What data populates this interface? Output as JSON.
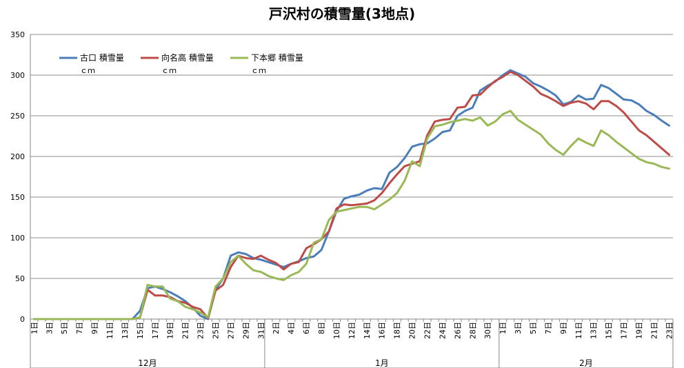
{
  "chart_data": {
    "type": "line",
    "title": "戸沢村の積雪量(3地点)",
    "ylim": [
      0,
      350
    ],
    "y_ticks": [
      "0",
      "50",
      "100",
      "150",
      "200",
      "250",
      "300",
      "350"
    ],
    "grid": "horizontal",
    "legend_position": "top-left",
    "x": [
      "12月1日",
      "12月2日",
      "12月3日",
      "12月4日",
      "12月5日",
      "12月6日",
      "12月7日",
      "12月8日",
      "12月9日",
      "12月10日",
      "12月11日",
      "12月12日",
      "12月13日",
      "12月14日",
      "12月15日",
      "12月16日",
      "12月17日",
      "12月18日",
      "12月19日",
      "12月20日",
      "12月21日",
      "12月22日",
      "12月23日",
      "12月24日",
      "12月25日",
      "12月26日",
      "12月27日",
      "12月28日",
      "12月29日",
      "12月30日",
      "12月31日",
      "1月1日",
      "1月2日",
      "1月3日",
      "1月4日",
      "1月5日",
      "1月6日",
      "1月7日",
      "1月8日",
      "1月9日",
      "1月10日",
      "1月11日",
      "1月12日",
      "1月13日",
      "1月14日",
      "1月15日",
      "1月16日",
      "1月17日",
      "1月18日",
      "1月19日",
      "1月20日",
      "1月21日",
      "1月22日",
      "1月23日",
      "1月24日",
      "1月25日",
      "1月26日",
      "1月27日",
      "1月28日",
      "1月29日",
      "1月30日",
      "1月31日",
      "2月1日",
      "2月2日",
      "2月3日",
      "2月4日",
      "2月5日",
      "2月6日",
      "2月7日",
      "2月8日",
      "2月9日",
      "2月10日",
      "2月11日",
      "2月12日",
      "2月13日",
      "2月14日",
      "2月15日",
      "2月16日",
      "2月17日",
      "2月18日",
      "2月19日",
      "2月20日",
      "2月21日",
      "2月22日",
      "2月23日"
    ],
    "x_tick_labels": [
      {
        "i": 0,
        "label": "1日"
      },
      {
        "i": 2,
        "label": "3日"
      },
      {
        "i": 4,
        "label": "5日"
      },
      {
        "i": 6,
        "label": "7日"
      },
      {
        "i": 8,
        "label": "9日"
      },
      {
        "i": 10,
        "label": "11日"
      },
      {
        "i": 12,
        "label": "13日"
      },
      {
        "i": 14,
        "label": "15日"
      },
      {
        "i": 16,
        "label": "17日"
      },
      {
        "i": 18,
        "label": "19日"
      },
      {
        "i": 20,
        "label": "21日"
      },
      {
        "i": 22,
        "label": "23日"
      },
      {
        "i": 24,
        "label": "25日"
      },
      {
        "i": 26,
        "label": "27日"
      },
      {
        "i": 28,
        "label": "29日"
      },
      {
        "i": 30,
        "label": "31日"
      },
      {
        "i": 32,
        "label": "2日"
      },
      {
        "i": 34,
        "label": "4日"
      },
      {
        "i": 36,
        "label": "6日"
      },
      {
        "i": 38,
        "label": "8日"
      },
      {
        "i": 40,
        "label": "10日"
      },
      {
        "i": 42,
        "label": "12日"
      },
      {
        "i": 44,
        "label": "14日"
      },
      {
        "i": 46,
        "label": "16日"
      },
      {
        "i": 48,
        "label": "18日"
      },
      {
        "i": 50,
        "label": "20日"
      },
      {
        "i": 52,
        "label": "22日"
      },
      {
        "i": 54,
        "label": "24日"
      },
      {
        "i": 56,
        "label": "26日"
      },
      {
        "i": 58,
        "label": "28日"
      },
      {
        "i": 60,
        "label": "30日"
      },
      {
        "i": 62,
        "label": "1日"
      },
      {
        "i": 64,
        "label": "3日"
      },
      {
        "i": 66,
        "label": "5日"
      },
      {
        "i": 68,
        "label": "7日"
      },
      {
        "i": 70,
        "label": "9日"
      },
      {
        "i": 72,
        "label": "11日"
      },
      {
        "i": 74,
        "label": "13日"
      },
      {
        "i": 76,
        "label": "15日"
      },
      {
        "i": 78,
        "label": "17日"
      },
      {
        "i": 80,
        "label": "19日"
      },
      {
        "i": 82,
        "label": "21日"
      },
      {
        "i": 84,
        "label": "23日"
      }
    ],
    "month_groups": [
      {
        "label": "12月",
        "start": 0,
        "end": 30
      },
      {
        "label": "1月",
        "start": 31,
        "end": 61
      },
      {
        "label": "2月",
        "start": 62,
        "end": 84
      }
    ],
    "series": [
      {
        "name": "古口 積雪量",
        "unit": "ｃｍ",
        "color": "#4a7ebb",
        "values": [
          0,
          0,
          0,
          0,
          0,
          0,
          0,
          0,
          0,
          0,
          0,
          0,
          0,
          0,
          10,
          38,
          40,
          37,
          33,
          28,
          22,
          14,
          4,
          0,
          36,
          50,
          78,
          82,
          80,
          75,
          73,
          70,
          67,
          64,
          68,
          71,
          75,
          77,
          85,
          108,
          133,
          148,
          151,
          153,
          158,
          161,
          160,
          180,
          187,
          198,
          212,
          215,
          216,
          222,
          230,
          232,
          250,
          256,
          260,
          281,
          287,
          292,
          300,
          306,
          302,
          298,
          290,
          286,
          281,
          275,
          264,
          267,
          275,
          270,
          271,
          288,
          284,
          277,
          270,
          269,
          264,
          256,
          251,
          244,
          238
        ]
      },
      {
        "name": "向名高 積雪量",
        "unit": "ｃｍ",
        "color": "#be4b48",
        "values": [
          0,
          0,
          0,
          0,
          0,
          0,
          0,
          0,
          0,
          0,
          0,
          0,
          0,
          0,
          2,
          36,
          29,
          29,
          27,
          22,
          20,
          15,
          12,
          1,
          35,
          42,
          64,
          78,
          75,
          74,
          78,
          73,
          69,
          61,
          68,
          70,
          87,
          92,
          98,
          108,
          136,
          141,
          140,
          141,
          142,
          146,
          155,
          167,
          178,
          188,
          191,
          194,
          226,
          243,
          245,
          246,
          260,
          261,
          275,
          276,
          285,
          293,
          298,
          304,
          300,
          293,
          286,
          277,
          273,
          268,
          262,
          266,
          268,
          265,
          258,
          268,
          268,
          262,
          254,
          243,
          232,
          226,
          218,
          210,
          202
        ]
      },
      {
        "name": "下本郷 積雪量",
        "unit": "ｃｍ",
        "color": "#98b954",
        "values": [
          0,
          0,
          0,
          0,
          0,
          0,
          0,
          0,
          0,
          0,
          0,
          0,
          0,
          0,
          2,
          42,
          40,
          40,
          25,
          22,
          15,
          12,
          8,
          2,
          40,
          50,
          70,
          78,
          68,
          60,
          58,
          53,
          50,
          48,
          54,
          58,
          68,
          94,
          98,
          122,
          132,
          134,
          136,
          138,
          138,
          135,
          141,
          147,
          155,
          170,
          194,
          188,
          222,
          237,
          239,
          242,
          244,
          246,
          244,
          248,
          238,
          243,
          252,
          256,
          245,
          239,
          233,
          227,
          216,
          208,
          202,
          213,
          222,
          217,
          213,
          232,
          226,
          218,
          211,
          204,
          197,
          193,
          191,
          187,
          185
        ]
      }
    ]
  }
}
